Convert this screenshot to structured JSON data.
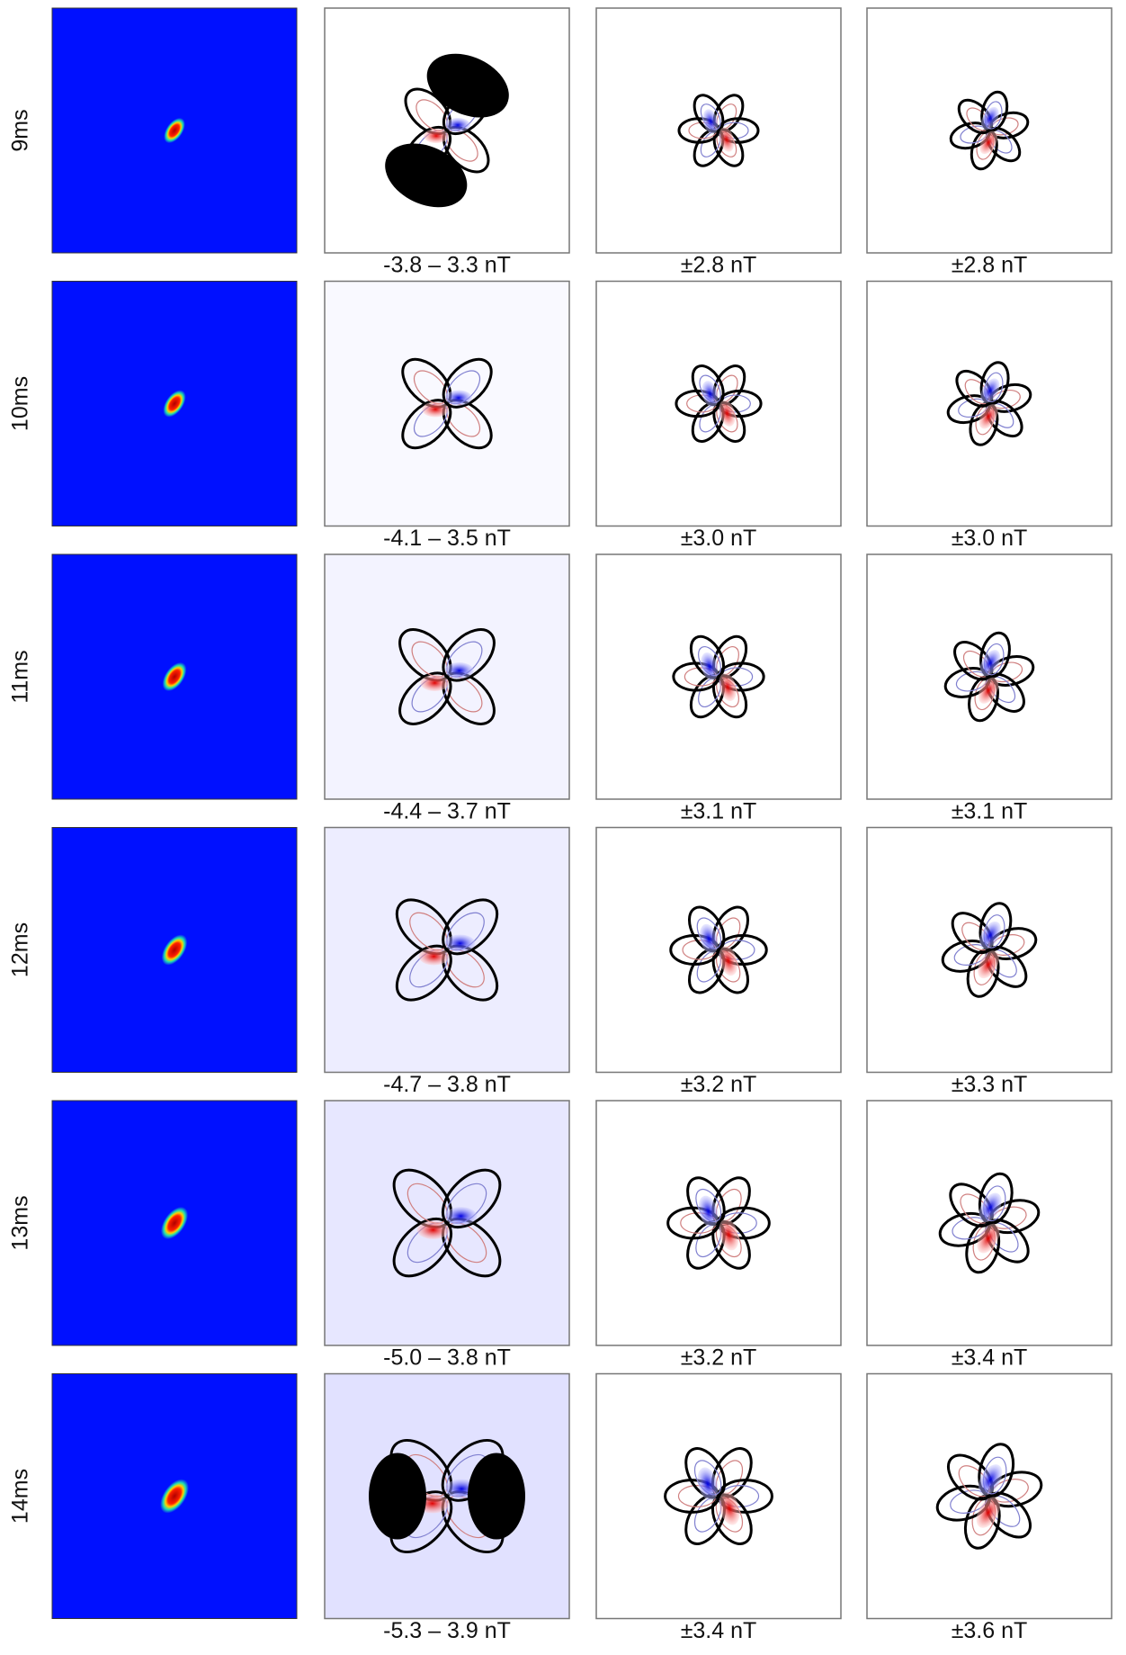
{
  "rows": [
    {
      "label": "9ms",
      "captions": [
        "-3.8 – 3.3 nT",
        "±2.8 nT",
        "±2.8 nT"
      ]
    },
    {
      "label": "10ms",
      "captions": [
        "-4.1 – 3.5 nT",
        "±3.0 nT",
        "±3.0 nT"
      ]
    },
    {
      "label": "11ms",
      "captions": [
        "-4.4 – 3.7 nT",
        "±3.1 nT",
        "±3.1 nT"
      ]
    },
    {
      "label": "12ms",
      "captions": [
        "-4.7 – 3.8 nT",
        "±3.2 nT",
        "±3.3 nT"
      ]
    },
    {
      "label": "13ms",
      "captions": [
        "-5.0 – 3.8 nT",
        "±3.2 nT",
        "±3.4 nT"
      ]
    },
    {
      "label": "14ms",
      "captions": [
        "-5.3 – 3.9 nT",
        "±3.4 nT",
        "±3.6 nT"
      ]
    }
  ]
}
